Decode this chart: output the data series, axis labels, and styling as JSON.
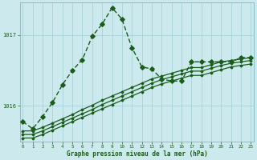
{
  "title": "Graphe pression niveau de la mer (hPa)",
  "bg_color": "#cce9ed",
  "line_color": "#1a5c1a",
  "grid_color": "#a0cdd4",
  "x_min": -0.3,
  "x_max": 23.3,
  "y_min": 1015.5,
  "y_max": 1017.45,
  "y_ticks": [
    1016,
    1017
  ],
  "x_ticks": [
    0,
    1,
    2,
    3,
    4,
    5,
    6,
    7,
    8,
    9,
    10,
    11,
    12,
    13,
    14,
    15,
    16,
    17,
    18,
    19,
    20,
    21,
    22,
    23
  ],
  "series_spike": {
    "x": [
      0,
      1,
      2,
      3,
      4,
      5,
      6,
      7,
      8,
      9,
      10,
      11,
      12,
      13,
      14,
      15,
      16,
      17,
      18,
      19,
      20,
      21,
      22,
      23
    ],
    "y": [
      1015.78,
      1015.68,
      1015.85,
      1016.05,
      1016.3,
      1016.5,
      1016.65,
      1016.98,
      1017.15,
      1017.38,
      1017.22,
      1016.82,
      1016.55,
      1016.52,
      1016.38,
      1016.35,
      1016.35,
      1016.62,
      1016.62,
      1016.62,
      1016.62,
      1016.62,
      1016.68,
      1016.68
    ]
  },
  "series_lin1": {
    "x": [
      0,
      1,
      2,
      3,
      4,
      5,
      6,
      7,
      8,
      9,
      10,
      11,
      12,
      13,
      14,
      15,
      16,
      17,
      18,
      19,
      20,
      21,
      22,
      23
    ],
    "y": [
      1015.65,
      1015.65,
      1015.7,
      1015.76,
      1015.82,
      1015.88,
      1015.95,
      1016.01,
      1016.08,
      1016.14,
      1016.2,
      1016.26,
      1016.32,
      1016.38,
      1016.42,
      1016.46,
      1016.5,
      1016.54,
      1016.54,
      1016.58,
      1016.62,
      1016.64,
      1016.66,
      1016.68
    ]
  },
  "series_lin2": {
    "x": [
      0,
      1,
      2,
      3,
      4,
      5,
      6,
      7,
      8,
      9,
      10,
      11,
      12,
      13,
      14,
      15,
      16,
      17,
      18,
      19,
      20,
      21,
      22,
      23
    ],
    "y": [
      1015.6,
      1015.6,
      1015.65,
      1015.71,
      1015.77,
      1015.83,
      1015.89,
      1015.95,
      1016.02,
      1016.08,
      1016.14,
      1016.2,
      1016.26,
      1016.32,
      1016.37,
      1016.41,
      1016.45,
      1016.49,
      1016.49,
      1016.53,
      1016.57,
      1016.6,
      1016.62,
      1016.64
    ]
  },
  "series_lin3": {
    "x": [
      0,
      1,
      2,
      3,
      4,
      5,
      6,
      7,
      8,
      9,
      10,
      11,
      12,
      13,
      14,
      15,
      16,
      17,
      18,
      19,
      20,
      21,
      22,
      23
    ],
    "y": [
      1015.55,
      1015.55,
      1015.6,
      1015.66,
      1015.72,
      1015.78,
      1015.84,
      1015.9,
      1015.96,
      1016.02,
      1016.08,
      1016.14,
      1016.2,
      1016.26,
      1016.31,
      1016.35,
      1016.39,
      1016.43,
      1016.43,
      1016.47,
      1016.51,
      1016.55,
      1016.57,
      1016.59
    ]
  }
}
